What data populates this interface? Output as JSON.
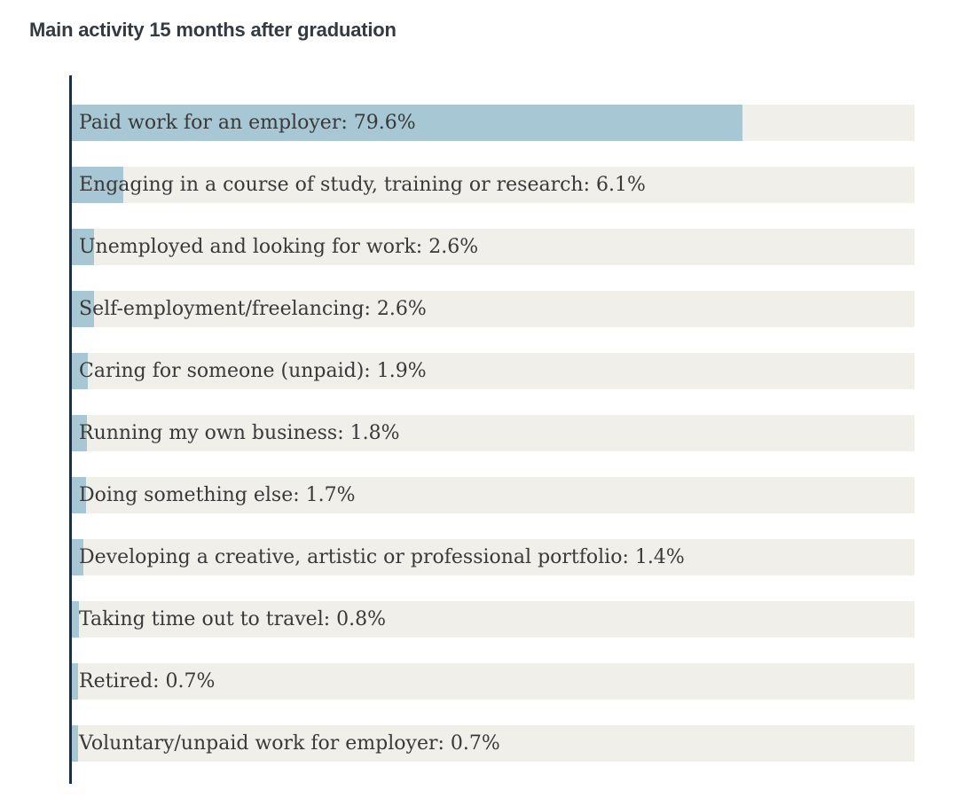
{
  "title": "Main activity 15 months after graduation",
  "colors": {
    "bar_fill": "#a6c7d3",
    "bar_track": "#f0efe9",
    "axis_line": "#1c2e4a",
    "title_text": "#333a42",
    "label_text": "#393939",
    "background": "#ffffff"
  },
  "chart_data": {
    "type": "bar",
    "orientation": "horizontal",
    "title": "Main activity 15 months after graduation",
    "xlabel": "",
    "ylabel": "",
    "xlim": [
      0,
      100
    ],
    "grid": false,
    "legend": false,
    "value_unit": "%",
    "categories": [
      "Paid work for an employer",
      "Engaging in a course of study, training or research",
      "Unemployed and looking for work",
      "Self-employment/freelancing",
      "Caring for someone (unpaid)",
      "Running my own business",
      "Doing something else",
      "Developing a creative, artistic or professional portfolio",
      "Taking time out to travel",
      "Retired",
      "Voluntary/unpaid work for employer"
    ],
    "values": [
      79.6,
      6.1,
      2.6,
      2.6,
      1.9,
      1.8,
      1.7,
      1.4,
      0.8,
      0.7,
      0.7
    ],
    "rows": [
      {
        "category": "Paid work for an employer",
        "value": 79.6,
        "display": "Paid work for an employer: 79.6%"
      },
      {
        "category": "Engaging in a course of study, training or research",
        "value": 6.1,
        "display": "Engaging in a course of study, training or research: 6.1%"
      },
      {
        "category": "Unemployed and looking for work",
        "value": 2.6,
        "display": "Unemployed and looking for work: 2.6%"
      },
      {
        "category": "Self-employment/freelancing",
        "value": 2.6,
        "display": "Self-employment/freelancing: 2.6%"
      },
      {
        "category": "Caring for someone (unpaid)",
        "value": 1.9,
        "display": "Caring for someone (unpaid): 1.9%"
      },
      {
        "category": "Running my own business",
        "value": 1.8,
        "display": "Running my own business: 1.8%"
      },
      {
        "category": "Doing something else",
        "value": 1.7,
        "display": "Doing something else: 1.7%"
      },
      {
        "category": "Developing a creative, artistic or professional portfolio",
        "value": 1.4,
        "display": "Developing a creative, artistic or professional portfolio: 1.4%"
      },
      {
        "category": "Taking time out to travel",
        "value": 0.8,
        "display": "Taking time out to travel: 0.8%"
      },
      {
        "category": "Retired",
        "value": 0.7,
        "display": "Retired: 0.7%"
      },
      {
        "category": "Voluntary/unpaid work for employer",
        "value": 0.7,
        "display": "Voluntary/unpaid work for employer: 0.7%"
      }
    ]
  }
}
